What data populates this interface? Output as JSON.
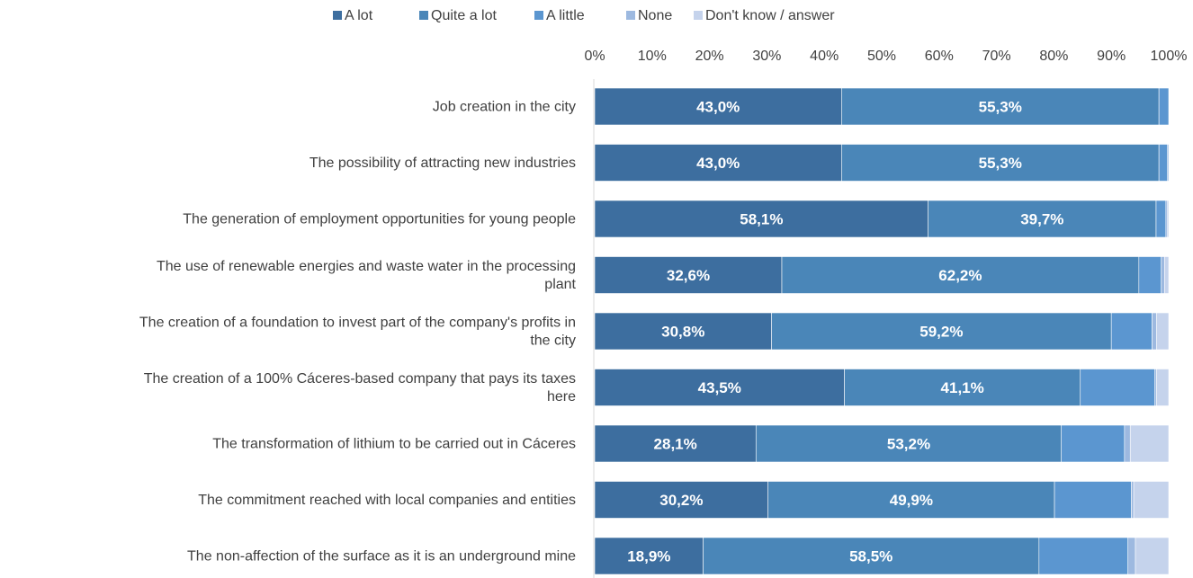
{
  "chart_data": {
    "type": "bar",
    "orientation": "horizontal",
    "stacked": true,
    "title": "",
    "xlabel": "",
    "ylabel": "",
    "xlim": [
      0,
      100
    ],
    "x_ticks": [
      "0%",
      "10%",
      "20%",
      "30%",
      "40%",
      "50%",
      "60%",
      "70%",
      "80%",
      "90%",
      "100%"
    ],
    "grid": false,
    "legend_position": "top",
    "categories": [
      [
        "Job creation in the city"
      ],
      [
        "The possibility of attracting new industries"
      ],
      [
        "The generation of employment opportunities for young people"
      ],
      [
        "The use of renewable energies and waste water in the processing",
        "plant"
      ],
      [
        "The creation of a foundation to invest part of the company's profits in",
        "the city"
      ],
      [
        "The creation of a 100% Cáceres-based company that pays its taxes",
        "here"
      ],
      [
        "The transformation of lithium to be carried out in Cáceres"
      ],
      [
        "The commitment reached with local companies and entities"
      ],
      [
        "The non-affection of the surface as it is an underground mine"
      ]
    ],
    "series": [
      {
        "name": "A lot",
        "color": "#3D6E9F",
        "values": [
          43.0,
          43.0,
          58.1,
          32.6,
          30.8,
          43.5,
          28.1,
          30.2,
          18.9
        ],
        "labels": [
          "43,0%",
          "43,0%",
          "58,1%",
          "32,6%",
          "30,8%",
          "43,5%",
          "28,1%",
          "30,2%",
          "18,9%"
        ]
      },
      {
        "name": "Quite a lot",
        "color": "#4A86B8",
        "values": [
          55.3,
          55.3,
          39.7,
          62.2,
          59.2,
          41.1,
          53.2,
          49.9,
          58.5
        ],
        "labels": [
          "55,3%",
          "55,3%",
          "39,7%",
          "62,2%",
          "59,2%",
          "41,1%",
          "53,2%",
          "49,9%",
          "58,5%"
        ]
      },
      {
        "name": "A little",
        "color": "#5B96D0",
        "values": [
          1.7,
          1.5,
          1.7,
          3.9,
          7.1,
          13.0,
          11.0,
          13.4,
          15.5
        ],
        "labels": [
          "",
          "",
          "",
          "",
          "",
          "",
          "",
          "",
          ""
        ]
      },
      {
        "name": "None",
        "color": "#9DB9E0",
        "values": [
          0.0,
          0.2,
          0.3,
          0.6,
          0.8,
          0.3,
          1.0,
          0.4,
          1.3
        ],
        "labels": [
          "",
          "",
          "",
          "",
          "",
          "",
          "",
          "",
          ""
        ]
      },
      {
        "name": "Don't know / answer",
        "color": "#C5D3EC",
        "values": [
          0.0,
          0.0,
          0.2,
          0.7,
          2.1,
          2.1,
          6.7,
          6.1,
          5.8
        ],
        "labels": [
          "",
          "",
          "",
          "",
          "",
          "",
          "",
          "",
          ""
        ]
      }
    ]
  }
}
